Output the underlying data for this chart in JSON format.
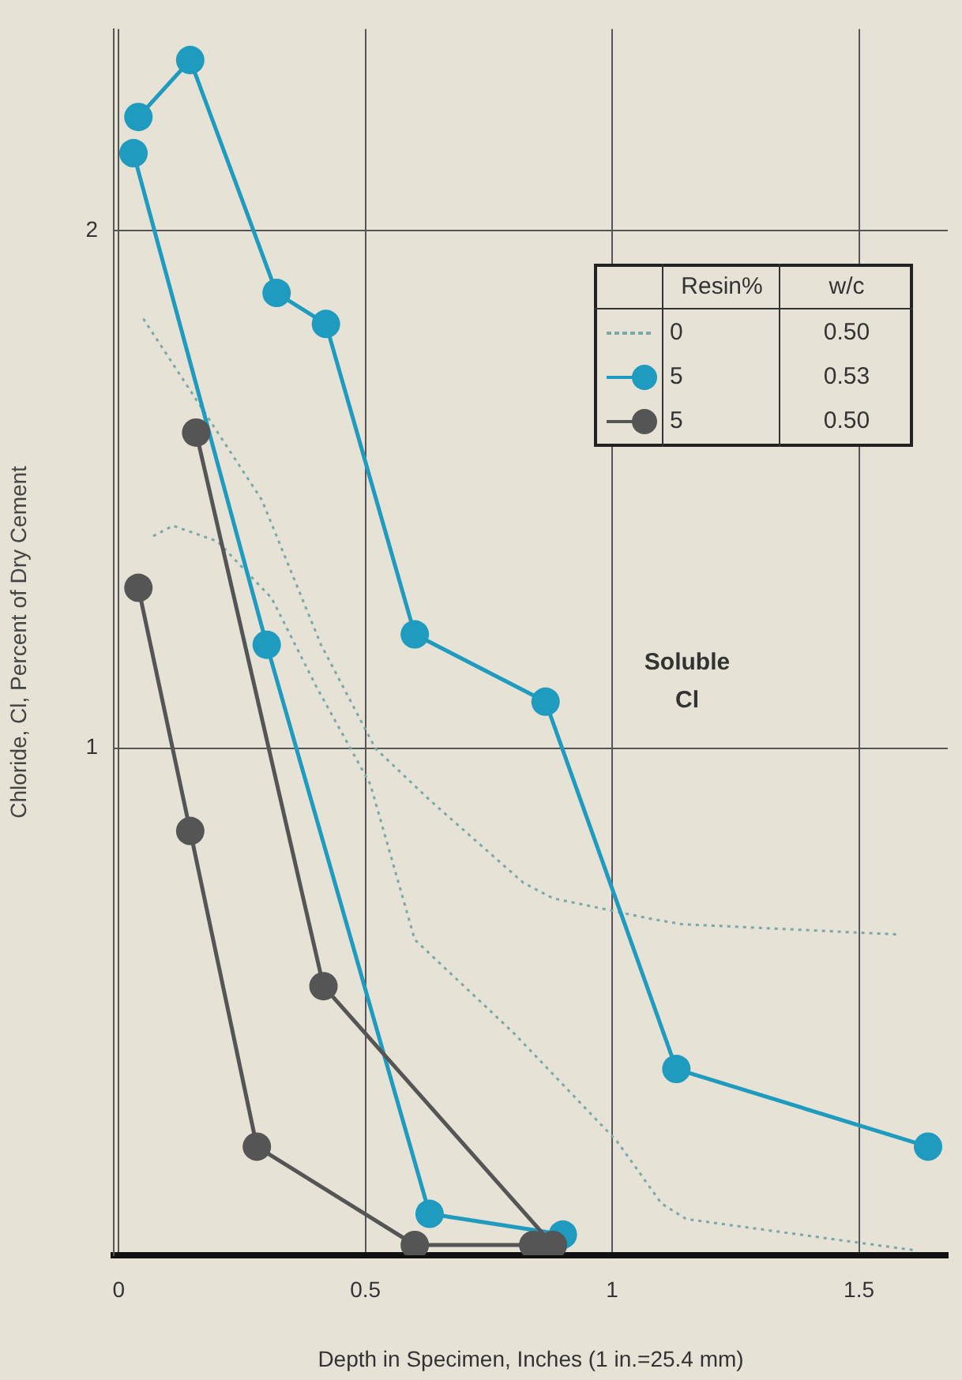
{
  "chart_data": {
    "type": "line",
    "xlabel": "Depth in Specimen, Inches (1 in.=25.4 mm)",
    "ylabel": "Chloride, Cl, Percent of Dry Cement",
    "legend_title": "Resin%",
    "legend": "top right",
    "grid": true,
    "xlim": [
      -0.01,
      1.68
    ],
    "ylim": [
      0.02,
      2.39
    ],
    "xticks": [
      0,
      0.5,
      1,
      1.5
    ],
    "yticks": [
      1,
      2
    ],
    "annotations": [
      "w/c",
      "0.50",
      "0.53",
      "0.50",
      "Soluble Cl"
    ],
    "series": [
      {
        "name": "0",
        "color": "#7aa8a8",
        "marker": "none",
        "line_style": "dotted",
        "x": [
          0.05,
          0.29,
          0.41,
          0.52,
          0.63,
          0.82,
          0.88,
          1.08,
          1.14,
          1.58
        ],
        "values": [
          1.83,
          1.48,
          1.2,
          1.0,
          0.9,
          0.74,
          0.71,
          0.67,
          0.66,
          0.64
        ]
      },
      {
        "color": "#7aa8a8",
        "marker": "none",
        "line_style": "dotted",
        "x": [
          0.07,
          0.11,
          0.2,
          0.31,
          0.4,
          0.51,
          0.6,
          0.8,
          1.01,
          1.1,
          1.15,
          1.61
        ],
        "values": [
          1.41,
          1.43,
          1.4,
          1.29,
          1.12,
          0.93,
          0.63,
          0.45,
          0.24,
          0.12,
          0.09,
          0.03
        ]
      },
      {
        "name": "5",
        "color": "#1e9bbf",
        "marker": "circle",
        "line_style": "solid",
        "x": [
          0.04,
          0.145,
          0.32,
          0.42,
          0.6,
          0.865,
          1.13,
          1.64
        ],
        "values": [
          2.22,
          2.33,
          1.88,
          1.82,
          1.22,
          1.09,
          0.38,
          0.23
        ]
      },
      {
        "color": "#1e9bbf",
        "marker": "circle",
        "line_style": "solid",
        "x": [
          0.03,
          0.3,
          0.63,
          0.9
        ],
        "values": [
          2.15,
          1.2,
          0.1,
          0.06
        ]
      },
      {
        "name": "5",
        "color": "#555555",
        "marker": "circle",
        "line_style": "solid",
        "x": [
          0.157,
          0.415,
          0.88
        ],
        "values": [
          1.61,
          0.54,
          0.04
        ]
      },
      {
        "color": "#555555",
        "marker": "circle",
        "line_style": "solid",
        "x": [
          0.04,
          0.145,
          0.28,
          0.6,
          0.84
        ],
        "values": [
          1.31,
          0.84,
          0.23,
          0.04,
          0.04
        ]
      }
    ]
  }
}
